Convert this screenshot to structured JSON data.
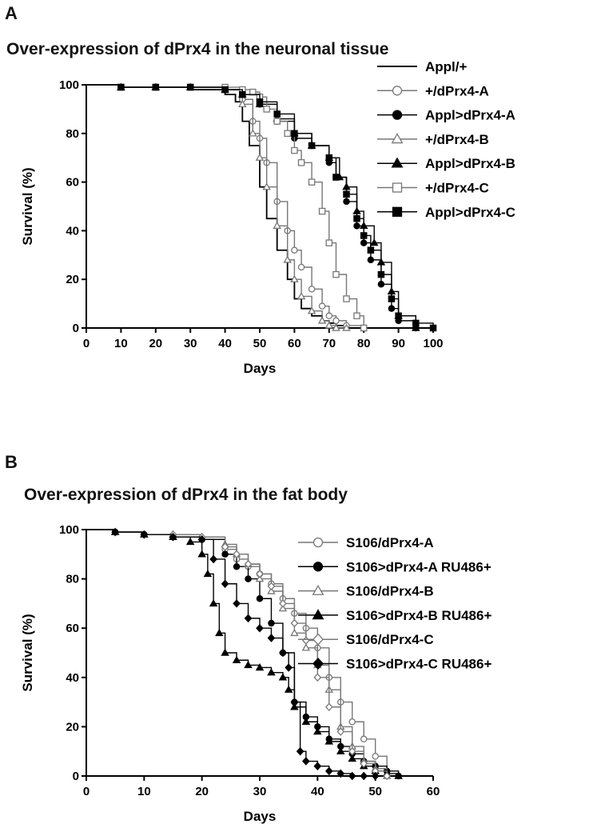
{
  "chart_data": [
    {
      "type": "line",
      "panel_label": "A",
      "title": "Over-expression of dPrx4 in the neuronal tissue",
      "xlabel": "Days",
      "ylabel": "Survival (%)",
      "xlim": [
        0,
        100
      ],
      "ylim": [
        0,
        100
      ],
      "x_ticks": [
        0,
        10,
        20,
        30,
        40,
        50,
        60,
        70,
        80,
        90,
        100
      ],
      "y_ticks": [
        0,
        20,
        40,
        60,
        80,
        100
      ],
      "grid": false,
      "legend_position": "top-right",
      "series": [
        {
          "name": "Appl/+",
          "marker": "none",
          "color": "#000000",
          "x": [
            0,
            10,
            20,
            30,
            40,
            43,
            45,
            47,
            50,
            52,
            55,
            58,
            60,
            62,
            65,
            68,
            70,
            72,
            75,
            80
          ],
          "y": [
            100,
            99,
            99,
            98,
            96,
            93,
            85,
            75,
            58,
            45,
            32,
            20,
            12,
            8,
            5,
            3,
            2,
            1,
            0,
            0
          ]
        },
        {
          "name": "+/dPrx4-A",
          "marker": "circle-open",
          "color": "#777777",
          "x": [
            0,
            10,
            20,
            30,
            40,
            45,
            48,
            50,
            52,
            55,
            58,
            60,
            62,
            65,
            68,
            70,
            72,
            75,
            80
          ],
          "y": [
            100,
            99,
            99,
            99,
            98,
            94,
            85,
            78,
            68,
            52,
            40,
            32,
            25,
            16,
            9,
            5,
            3,
            1,
            0
          ]
        },
        {
          "name": "Appl>dPrx4-A",
          "marker": "circle-filled",
          "color": "#000000",
          "x": [
            0,
            10,
            20,
            30,
            40,
            45,
            50,
            55,
            60,
            65,
            70,
            72,
            75,
            78,
            80,
            82,
            85,
            88,
            90,
            95
          ],
          "y": [
            100,
            99,
            99,
            99,
            98,
            96,
            92,
            85,
            78,
            75,
            68,
            62,
            52,
            42,
            35,
            28,
            18,
            8,
            3,
            0
          ]
        },
        {
          "name": "+/dPrx4-B",
          "marker": "triangle-open",
          "color": "#777777",
          "x": [
            0,
            10,
            20,
            30,
            40,
            45,
            48,
            50,
            52,
            55,
            58,
            60,
            62,
            65,
            68,
            70,
            72,
            75
          ],
          "y": [
            100,
            99,
            99,
            99,
            98,
            92,
            80,
            70,
            58,
            42,
            28,
            20,
            13,
            7,
            3,
            1,
            0,
            0
          ]
        },
        {
          "name": "Appl>dPrx4-B",
          "marker": "triangle-filled",
          "color": "#000000",
          "x": [
            0,
            10,
            20,
            30,
            40,
            45,
            50,
            55,
            60,
            65,
            70,
            73,
            75,
            78,
            80,
            83,
            85,
            88,
            90,
            95
          ],
          "y": [
            100,
            99,
            99,
            99,
            98,
            96,
            92,
            86,
            80,
            75,
            70,
            62,
            58,
            48,
            42,
            35,
            27,
            15,
            5,
            0
          ]
        },
        {
          "name": "+/dPrx4-C",
          "marker": "square-open",
          "color": "#777777",
          "x": [
            0,
            10,
            20,
            30,
            40,
            45,
            48,
            50,
            52,
            55,
            58,
            60,
            62,
            65,
            68,
            70,
            72,
            75,
            78,
            80
          ],
          "y": [
            100,
            99,
            99,
            99,
            99,
            98,
            97,
            95,
            90,
            85,
            80,
            73,
            68,
            60,
            48,
            35,
            22,
            12,
            5,
            0
          ]
        },
        {
          "name": "Appl>dPrx4-C",
          "marker": "square-filled",
          "color": "#000000",
          "x": [
            0,
            10,
            20,
            30,
            40,
            45,
            50,
            55,
            60,
            65,
            70,
            72,
            75,
            78,
            80,
            82,
            85,
            88,
            90,
            95,
            100
          ],
          "y": [
            100,
            99,
            99,
            99,
            98,
            96,
            93,
            88,
            80,
            75,
            70,
            62,
            55,
            45,
            38,
            32,
            22,
            12,
            5,
            2,
            0
          ]
        }
      ]
    },
    {
      "type": "line",
      "panel_label": "B",
      "title": "Over-expression of dPrx4 in the fat body",
      "xlabel": "Days",
      "ylabel": "Survival (%)",
      "xlim": [
        0,
        60
      ],
      "ylim": [
        0,
        100
      ],
      "x_ticks": [
        0,
        10,
        20,
        30,
        40,
        50,
        60
      ],
      "y_ticks": [
        0,
        20,
        40,
        60,
        80,
        100
      ],
      "grid": false,
      "legend_position": "top-right",
      "series": [
        {
          "name": "S106/dPrx4-A",
          "marker": "circle-open",
          "color": "#777777",
          "x": [
            0,
            5,
            10,
            15,
            20,
            24,
            26,
            28,
            30,
            32,
            34,
            36,
            38,
            40,
            42,
            44,
            46,
            48,
            50,
            52
          ],
          "y": [
            100,
            99,
            98,
            97,
            96,
            92,
            88,
            85,
            82,
            78,
            72,
            66,
            60,
            52,
            40,
            30,
            22,
            15,
            8,
            2
          ]
        },
        {
          "name": "S106>dPrx4-A RU486+",
          "marker": "circle-filled",
          "color": "#000000",
          "x": [
            0,
            5,
            10,
            15,
            20,
            24,
            26,
            28,
            30,
            32,
            34,
            36,
            38,
            40,
            42,
            44,
            46,
            48,
            50,
            52,
            54
          ],
          "y": [
            100,
            99,
            98,
            97,
            96,
            90,
            85,
            80,
            72,
            62,
            50,
            30,
            24,
            20,
            15,
            12,
            9,
            6,
            4,
            2,
            0
          ]
        },
        {
          "name": "S106/dPrx4-B",
          "marker": "triangle-open",
          "color": "#777777",
          "x": [
            0,
            5,
            10,
            15,
            20,
            24,
            26,
            28,
            30,
            32,
            34,
            36,
            38,
            40,
            42,
            44,
            46,
            48,
            50,
            52
          ],
          "y": [
            100,
            99,
            98,
            98,
            97,
            94,
            90,
            86,
            80,
            75,
            68,
            58,
            52,
            45,
            35,
            20,
            12,
            6,
            3,
            0
          ]
        },
        {
          "name": "S106>dPrx4-B RU486+",
          "marker": "triangle-filled",
          "color": "#000000",
          "x": [
            0,
            5,
            10,
            15,
            18,
            20,
            21,
            22,
            23,
            24,
            26,
            28,
            30,
            32,
            34,
            35,
            36,
            38,
            40,
            42,
            44,
            46,
            48,
            50,
            52,
            54
          ],
          "y": [
            100,
            99,
            98,
            97,
            95,
            90,
            82,
            70,
            58,
            50,
            47,
            45,
            44,
            42,
            40,
            35,
            28,
            22,
            18,
            14,
            10,
            7,
            4,
            2,
            1,
            0
          ]
        },
        {
          "name": "S106/dPrx4-C",
          "marker": "diamond-open",
          "color": "#777777",
          "x": [
            0,
            5,
            10,
            15,
            20,
            24,
            26,
            28,
            30,
            32,
            34,
            36,
            38,
            40,
            42,
            44,
            46,
            48,
            50,
            52
          ],
          "y": [
            100,
            99,
            98,
            98,
            97,
            93,
            90,
            86,
            82,
            77,
            70,
            62,
            55,
            40,
            28,
            18,
            10,
            5,
            2,
            0
          ]
        },
        {
          "name": "S106>dPrx4-C RU486+",
          "marker": "diamond-filled",
          "color": "#000000",
          "x": [
            0,
            5,
            10,
            15,
            20,
            22,
            24,
            26,
            28,
            30,
            32,
            34,
            35,
            36,
            37,
            38,
            40,
            42,
            44,
            46,
            48,
            50
          ],
          "y": [
            100,
            99,
            98,
            97,
            96,
            88,
            78,
            70,
            64,
            60,
            56,
            50,
            44,
            30,
            10,
            6,
            4,
            2,
            1,
            0,
            0,
            0
          ]
        }
      ]
    }
  ]
}
